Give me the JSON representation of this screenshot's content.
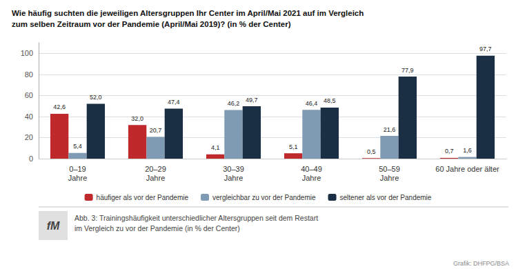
{
  "chart_data": {
    "type": "bar",
    "title": "Wie häufig suchten die jeweiligen Altersgruppen Ihr Center im April/Mai 2021 auf im Vergleich\nzum selben Zeitraum vor der Pandemie (April/Mai 2019)? (in % der Center)",
    "categories": [
      "0–19\nJahre",
      "20–29\nJahre",
      "30–39\nJahre",
      "40–49\nJahre",
      "50–59\nJahre",
      "60 Jahre oder älter"
    ],
    "series": [
      {
        "name": "häufiger als vor der Pandemie",
        "color": "#c0292b",
        "values": [
          42.6,
          32.0,
          4.1,
          5.1,
          0.5,
          0.7
        ],
        "value_labels": [
          "42,6",
          "32,0",
          "4,1",
          "5,1",
          "0,5",
          "0,7"
        ]
      },
      {
        "name": "vergleichbar zu vor der Pandemie",
        "color": "#7f9bb3",
        "values": [
          5.4,
          20.7,
          46.2,
          46.4,
          21.6,
          1.6
        ],
        "value_labels": [
          "5,4",
          "20,7",
          "46,2",
          "46,4",
          "21,6",
          "1,6"
        ]
      },
      {
        "name": "seltener als vor der Pandemie",
        "color": "#1a2e44",
        "values": [
          52.0,
          47.4,
          49.7,
          48.5,
          77.9,
          97.7
        ],
        "value_labels": [
          "52,0",
          "47,4",
          "49,7",
          "48,5",
          "77,9",
          "97,7"
        ]
      }
    ],
    "ylim": [
      0,
      110
    ],
    "yticks": [
      0,
      20,
      40,
      60,
      80,
      100
    ],
    "grid": true,
    "legend": "bottom",
    "data_labels": true,
    "annotations": [
      "Abb. 3: Trainingshäufigkeit unterschiedlicher Altersgruppen seit dem Restart\nim Vergleich zu vor der Pandemie (in % der Center)",
      "Grafik: DHFPG/BSA",
      "fM"
    ]
  }
}
